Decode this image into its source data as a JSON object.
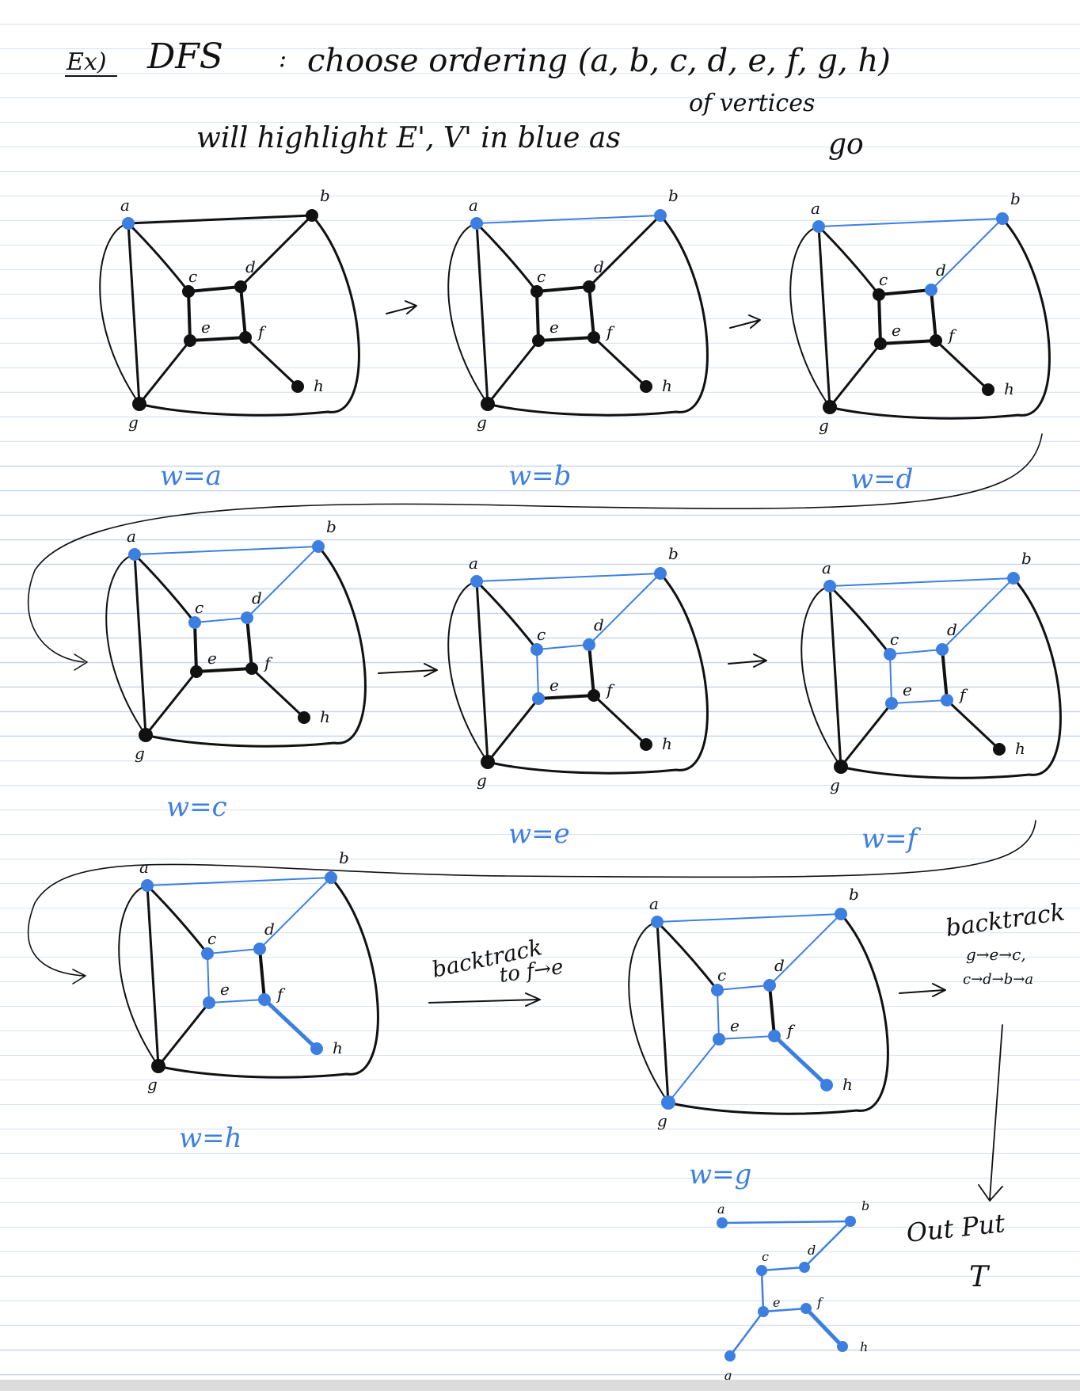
{
  "header": {
    "ex": "Ex)",
    "dfs": "DFS",
    "eq": ":",
    "line1": "choose ordering (a, b, c, d, e, f, g, h)",
    "line1b": "of vertices",
    "line2": "will highlight E', V' in blue as",
    "line2b": "go"
  },
  "vertex_labels": [
    "a",
    "b",
    "c",
    "d",
    "e",
    "f",
    "g",
    "h"
  ],
  "steps": [
    {
      "caption": "w=a",
      "blue_vertices": [
        "a"
      ],
      "blue_edges": []
    },
    {
      "caption": "w=b",
      "blue_vertices": [
        "a",
        "b"
      ],
      "blue_edges": [
        [
          "a",
          "b"
        ]
      ]
    },
    {
      "caption": "w=d",
      "blue_vertices": [
        "a",
        "b",
        "d"
      ],
      "blue_edges": [
        [
          "a",
          "b"
        ],
        [
          "b",
          "d"
        ]
      ]
    },
    {
      "caption": "w=c",
      "blue_vertices": [
        "a",
        "b",
        "d",
        "c"
      ],
      "blue_edges": [
        [
          "a",
          "b"
        ],
        [
          "b",
          "d"
        ],
        [
          "d",
          "c"
        ]
      ]
    },
    {
      "caption": "w=e",
      "blue_vertices": [
        "a",
        "b",
        "d",
        "c",
        "e"
      ],
      "blue_edges": [
        [
          "a",
          "b"
        ],
        [
          "b",
          "d"
        ],
        [
          "d",
          "c"
        ],
        [
          "c",
          "e"
        ]
      ]
    },
    {
      "caption": "w=f",
      "blue_vertices": [
        "a",
        "b",
        "d",
        "c",
        "e",
        "f"
      ],
      "blue_edges": [
        [
          "a",
          "b"
        ],
        [
          "b",
          "d"
        ],
        [
          "d",
          "c"
        ],
        [
          "c",
          "e"
        ],
        [
          "e",
          "f"
        ]
      ]
    },
    {
      "caption": "w=h",
      "blue_vertices": [
        "a",
        "b",
        "d",
        "c",
        "e",
        "f",
        "h"
      ],
      "blue_edges": [
        [
          "a",
          "b"
        ],
        [
          "b",
          "d"
        ],
        [
          "d",
          "c"
        ],
        [
          "c",
          "e"
        ],
        [
          "e",
          "f"
        ],
        [
          "f",
          "h"
        ]
      ]
    },
    {
      "caption": "w=g",
      "blue_vertices": [
        "a",
        "b",
        "d",
        "c",
        "e",
        "f",
        "h",
        "g"
      ],
      "blue_edges": [
        [
          "a",
          "b"
        ],
        [
          "b",
          "d"
        ],
        [
          "d",
          "c"
        ],
        [
          "c",
          "e"
        ],
        [
          "e",
          "f"
        ],
        [
          "f",
          "h"
        ],
        [
          "e",
          "g"
        ]
      ]
    }
  ],
  "annotations": {
    "backtrack_1": "backtrack",
    "backtrack_1b": "to f→e",
    "backtrack_2": "backtrack",
    "backtrack_2b": "g→e→c,",
    "backtrack_2c": "c→d→b→a",
    "output": "Out Put",
    "output_t": "T"
  },
  "colors": {
    "ink": "#111111",
    "highlight": "#3d7fe0",
    "ruling": "#c9d6ea"
  }
}
